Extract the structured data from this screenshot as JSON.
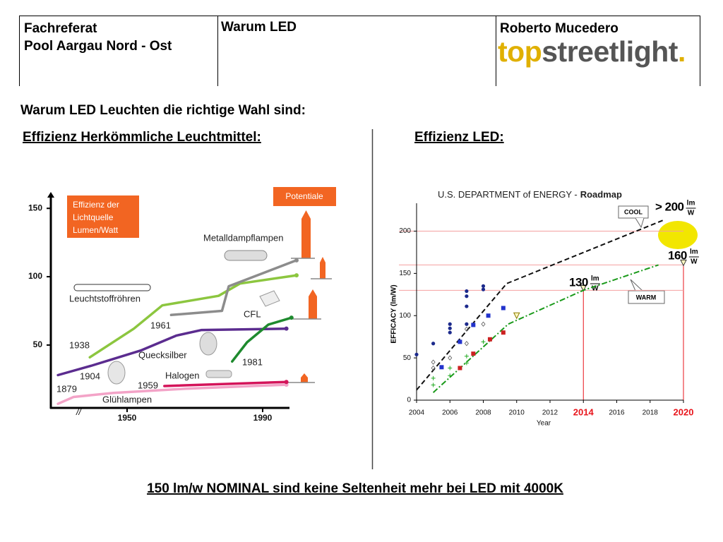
{
  "header": {
    "org": [
      "Fachreferat",
      "Pool Aargau Nord - Ost"
    ],
    "topic": "Warum LED",
    "author": "Roberto Mucedero",
    "logo": [
      "top",
      "streetlight",
      "."
    ]
  },
  "title": "Warum LED Leuchten die richtige Wahl sind:",
  "sections": [
    {
      "heading": "Effizienz Herkömmliche Leuchtmittel:"
    },
    {
      "heading": "Effizienz LED:"
    }
  ],
  "footer": "150 lm/w NOMINAL sind keine Seltenheit mehr bei LED mit 4000K",
  "chart_data": [
    {
      "type": "line",
      "legend_title": [
        "Effizienz der",
        "Lichtquelle",
        "Lumen/Watt"
      ],
      "potential_label": "Potentiale",
      "axis_break": "//",
      "xlim": [
        1927.5,
        2000
      ],
      "xticks": [
        1950,
        1990
      ],
      "ylim": [
        4,
        162
      ],
      "yticks": [
        50,
        100,
        150
      ],
      "series": [
        {
          "name": "Glühlampen",
          "color": "#f3a3c7",
          "start_year": 1879,
          "x": [
            1929.6,
            1934.2,
            1946,
            1967,
            1997
          ],
          "values": [
            7,
            12,
            15,
            18,
            21
          ]
        },
        {
          "name": "Halogen",
          "color": "#d4145a",
          "start_year": 1959,
          "x": [
            1961,
            1997
          ],
          "values": [
            20,
            23
          ]
        },
        {
          "name": "Quecksilber",
          "color": "#5b2c8f",
          "start_year": 1904,
          "x": [
            1929.6,
            1939.6,
            1954,
            1964.6,
            1972,
            1997
          ],
          "values": [
            28,
            35,
            46,
            57,
            61,
            62
          ]
        },
        {
          "name": "Leuchtstoffröhren",
          "color": "#8cc63f",
          "start_year": 1938,
          "x": [
            1939,
            1952,
            1960.4,
            1977,
            1983.3,
            2000
          ],
          "values": [
            41,
            62,
            79,
            86,
            95,
            101
          ]
        },
        {
          "name": "Metalldampflampen",
          "color": "#8c8c8c",
          "start_year": 1961,
          "x": [
            1963,
            1978,
            1980,
            2000
          ],
          "values": [
            72,
            75,
            93,
            112
          ]
        },
        {
          "name": "CFL",
          "color": "#1e8a2e",
          "start_year": 1981,
          "x": [
            1981,
            1985.4,
            1991.7,
            1998.5
          ],
          "values": [
            38,
            52,
            65,
            70
          ]
        }
      ]
    },
    {
      "type": "scatter",
      "title": "U.S. DEPARTMENT of ENERGY -",
      "title_bold": "Roadmap",
      "x_label": "Year",
      "y_label": "EFFICACY (lm/W)",
      "xlim": [
        2004,
        2020
      ],
      "xticks": [
        2004,
        2006,
        2008,
        2010,
        2012,
        2014,
        2016,
        2018,
        2020
      ],
      "ylim": [
        0,
        233
      ],
      "yticks": [
        0,
        50,
        100,
        150,
        200
      ],
      "unit": [
        "lm",
        "W"
      ],
      "target_color": "#e8141b",
      "targets": [
        {
          "y": 200,
          "label": "> 200"
        },
        {
          "x": 2020,
          "y": 160
        },
        {
          "x": 2014,
          "y": 130
        }
      ],
      "lines": [
        {
          "name": "COOL",
          "color": "#111111",
          "x": [
            2004,
            2009.4,
            2018.8
          ],
          "values": [
            12,
            138,
            213
          ]
        },
        {
          "name": "WARM",
          "color": "#1a9a1a",
          "x": [
            2005,
            2009.5,
            2014,
            2018.5
          ],
          "values": [
            9,
            90,
            130,
            160
          ]
        }
      ],
      "points": [
        {
          "shape": "circle",
          "color": "#1c2a8c",
          "x": [
            2004,
            2005,
            2006,
            2006,
            2006,
            2007,
            2007,
            2007,
            2007,
            2008,
            2008
          ],
          "values": [
            54,
            67,
            80,
            85,
            90,
            90,
            111,
            123,
            129,
            131,
            135
          ]
        },
        {
          "shape": "square",
          "color": "#2233cc",
          "x": [
            2005.5,
            2006.6,
            2007.4,
            2008.3,
            2009.2
          ],
          "values": [
            39,
            69,
            89,
            100,
            109
          ]
        },
        {
          "shape": "square",
          "color": "#cc2222",
          "x": [
            2006.6,
            2007.4,
            2008.4,
            2009.2
          ],
          "values": [
            38,
            55,
            72,
            80
          ]
        },
        {
          "shape": "diamond",
          "color": "#555555",
          "x": [
            2005,
            2005,
            2006,
            2007,
            2007,
            2008
          ],
          "values": [
            45,
            38,
            50,
            67,
            84,
            90
          ]
        },
        {
          "shape": "plus",
          "color": "#22aa22",
          "x": [
            2005,
            2005,
            2006,
            2006,
            2007,
            2007,
            2008
          ],
          "values": [
            26,
            18,
            38,
            29,
            52,
            44,
            69
          ]
        },
        {
          "shape": "triangle",
          "color": "#8a7a00",
          "x": [
            2010
          ],
          "values": [
            100
          ]
        }
      ]
    }
  ]
}
